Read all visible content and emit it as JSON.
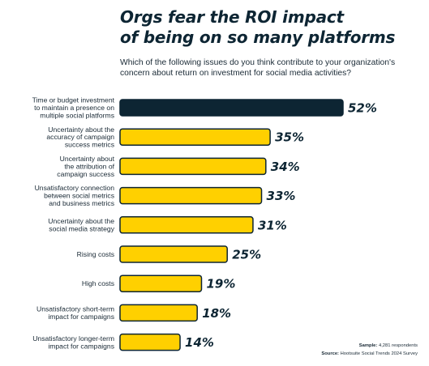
{
  "title_line1": "Orgs fear the ROI impact",
  "title_line2": "of being on so many platforms",
  "subtitle_line1": "Which of the following issues do you think contribute to your organization's",
  "subtitle_line2": "concern about return on investment for social media activities?",
  "footer": {
    "sample_label": "Sample:",
    "sample_value": "4,281 respondents",
    "source_label": "Source:",
    "source_value": "Hootsuite Social Trends 2024 Survey"
  },
  "colors": {
    "highlight": "#0d2533",
    "bar": "#ffd000",
    "outline": "#0d2533"
  },
  "chart_data": {
    "type": "bar",
    "orientation": "horizontal",
    "title": "Orgs fear the ROI impact of being on so many platforms",
    "categories": [
      [
        "Time or budget investment",
        "to maintain a presence on",
        "multiple social platforms"
      ],
      [
        "Uncertainty about the",
        "accuracy of campaign",
        "success metrics"
      ],
      [
        "Uncertainty about",
        "the attribution of",
        "campaign success"
      ],
      [
        "Unsatisfactory connection",
        "between social metrics",
        "and business metrics"
      ],
      [
        "Uncertainty about the",
        "social media strategy"
      ],
      [
        "Rising costs"
      ],
      [
        "High costs"
      ],
      [
        "Unsatisfactory short-term",
        "impact for campaigns"
      ],
      [
        "Unsatisfactory longer-term",
        "impact for campaigns"
      ]
    ],
    "values": [
      52,
      35,
      34,
      33,
      31,
      25,
      19,
      18,
      14
    ],
    "value_labels": [
      "52%",
      "35%",
      "34%",
      "33%",
      "31%",
      "25%",
      "19%",
      "18%",
      "14%"
    ],
    "xlim": [
      0,
      52
    ],
    "grid": false,
    "legend": "none"
  }
}
